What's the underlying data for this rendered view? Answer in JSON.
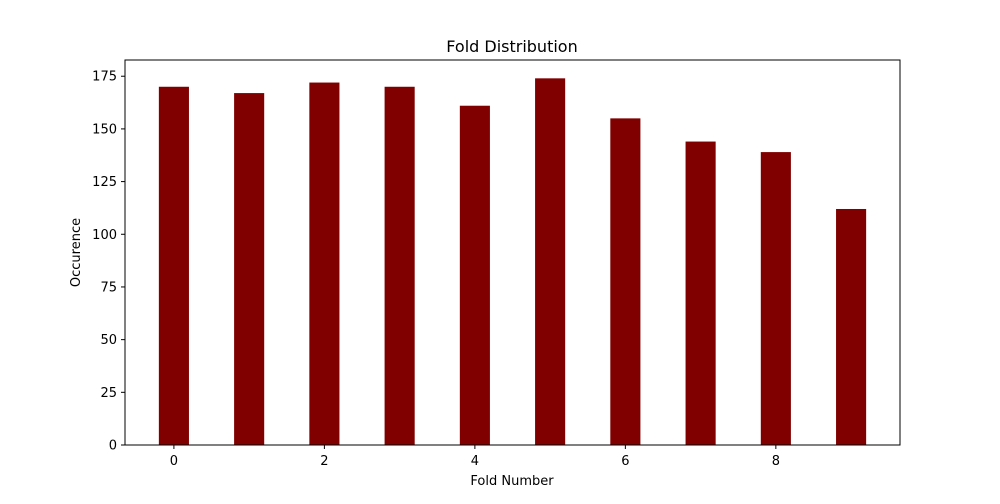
{
  "chart_data": {
    "type": "bar",
    "title": "Fold Distribution",
    "xlabel": "Fold Number",
    "ylabel": "Occurence",
    "x": [
      0,
      1,
      2,
      3,
      4,
      5,
      6,
      7,
      8,
      9
    ],
    "values": [
      170,
      167,
      172,
      170,
      161,
      174,
      155,
      144,
      139,
      112
    ],
    "xlim": [
      -0.65,
      9.65
    ],
    "ylim": [
      0,
      182.7
    ],
    "xticks": [
      0,
      2,
      4,
      6,
      8
    ],
    "xtick_labels": [
      "0",
      "2",
      "4",
      "6",
      "8"
    ],
    "yticks": [
      0,
      25,
      50,
      75,
      100,
      125,
      150,
      175
    ],
    "ytick_labels": [
      "0",
      "25",
      "50",
      "75",
      "100",
      "125",
      "150",
      "175"
    ],
    "bar_width": 0.4,
    "bar_color": "#800000",
    "grid": false,
    "legend": "none"
  }
}
